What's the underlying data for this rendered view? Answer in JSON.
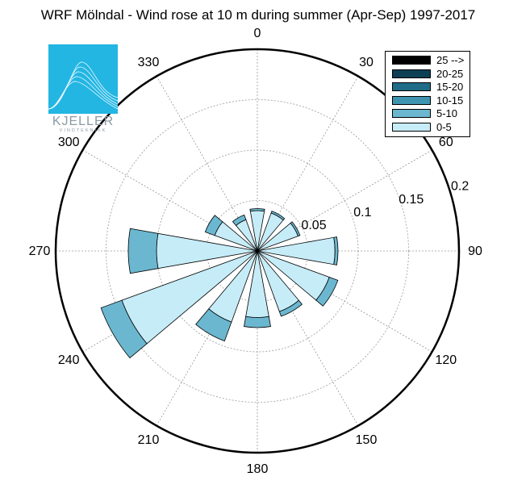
{
  "chart_data": {
    "type": "polar-bar",
    "title": "WRF Mölndal - Wind rose at 10 m during summer (Apr-Sep) 1997-2017",
    "angle_ticks": [
      "0",
      "30",
      "60",
      "90",
      "120",
      "150",
      "180",
      "210",
      "240",
      "270",
      "300",
      "330"
    ],
    "radial_ticks": [
      "0.05",
      "0.1",
      "0.15",
      "0.2"
    ],
    "rmax": 0.2,
    "bins": [
      "0-5",
      "5-10",
      "10-15",
      "15-20",
      "20-25",
      "25 -->"
    ],
    "legend_labels": [
      "25 -->",
      "20-25",
      "15-20",
      "10-15",
      "5-10",
      "0-5"
    ],
    "colors": {
      "0-5": "#c6ecf8",
      "5-10": "#6bb7d0",
      "10-15": "#3f94b0",
      "15-20": "#1e6c87",
      "20-25": "#0d3f55",
      "25 -->": "#000000"
    },
    "directions": [
      {
        "dir": 0,
        "values": [
          0.04,
          0.002,
          0,
          0,
          0,
          0
        ]
      },
      {
        "dir": 30,
        "values": [
          0.04,
          0.002,
          0,
          0,
          0,
          0
        ]
      },
      {
        "dir": 60,
        "values": [
          0.043,
          0.002,
          0,
          0,
          0,
          0
        ]
      },
      {
        "dir": 90,
        "values": [
          0.077,
          0.003,
          0,
          0,
          0,
          0
        ]
      },
      {
        "dir": 120,
        "values": [
          0.076,
          0.009,
          0,
          0,
          0,
          0
        ]
      },
      {
        "dir": 150,
        "values": [
          0.064,
          0.005,
          0,
          0,
          0,
          0
        ]
      },
      {
        "dir": 180,
        "values": [
          0.066,
          0.01,
          0,
          0,
          0,
          0
        ]
      },
      {
        "dir": 210,
        "values": [
          0.075,
          0.02,
          0,
          0,
          0,
          0
        ]
      },
      {
        "dir": 240,
        "values": [
          0.143,
          0.022,
          0,
          0,
          0,
          0
        ]
      },
      {
        "dir": 270,
        "values": [
          0.1,
          0.028,
          0,
          0,
          0,
          0
        ]
      },
      {
        "dir": 300,
        "values": [
          0.045,
          0.01,
          0,
          0,
          0,
          0
        ]
      },
      {
        "dir": 330,
        "values": [
          0.033,
          0.005,
          0,
          0,
          0,
          0
        ]
      }
    ]
  },
  "logo": {
    "name": "KJELLER",
    "subtitle": "VINDTEKNIKK"
  }
}
